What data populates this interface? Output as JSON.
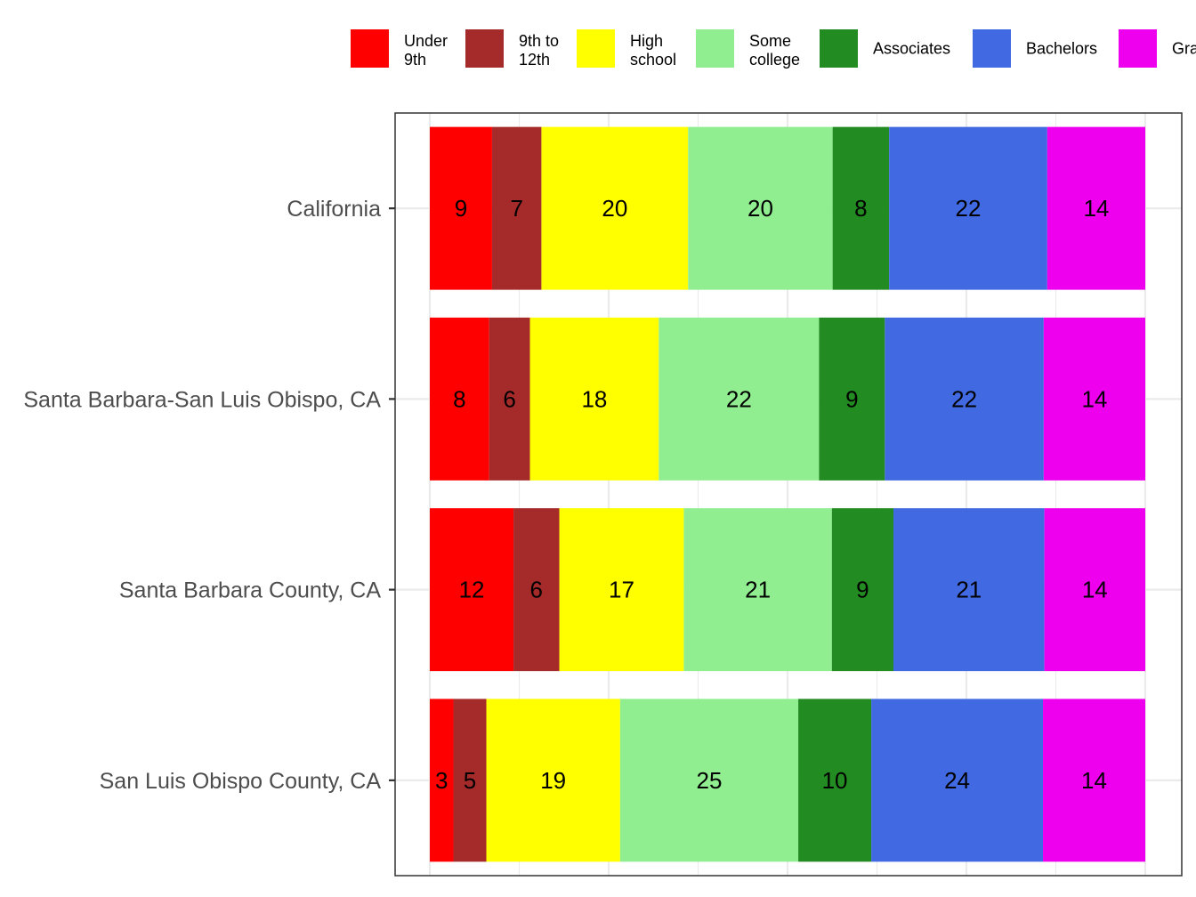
{
  "chart_data": {
    "type": "bar",
    "orientation": "horizontal",
    "stacked": true,
    "title": "",
    "xlabel": "",
    "ylabel": "",
    "categories": [
      "California",
      "Santa Barbara-San Luis Obispo, CA",
      "Santa Barbara County, CA",
      "San Luis Obispo County, CA"
    ],
    "series": [
      {
        "name": "Under\n9th",
        "color": "#ff0000",
        "values": [
          8.7,
          8.3,
          11.7,
          3.3
        ]
      },
      {
        "name": "9th to\n12th",
        "color": "#a52a2a",
        "values": [
          6.9,
          5.7,
          6.4,
          4.6
        ]
      },
      {
        "name": "High\nschool",
        "color": "#ffff00",
        "values": [
          20.5,
          18,
          17.4,
          18.7
        ]
      },
      {
        "name": "Some\ncollege",
        "color": "#90ee90",
        "values": [
          20.2,
          22.4,
          20.7,
          24.9
        ]
      },
      {
        "name": "Associates",
        "color": "#228b22",
        "values": [
          7.9,
          9.2,
          8.6,
          10.2
        ]
      },
      {
        "name": "Bachelors",
        "color": "#4169e1",
        "values": [
          22.1,
          22.2,
          21.1,
          24
        ]
      },
      {
        "name": "Graduate",
        "color": "#ee00ee",
        "values": [
          13.7,
          14.2,
          14.1,
          14.3
        ]
      }
    ],
    "data_labels": [
      [
        "9",
        "7",
        "20",
        "20",
        "8",
        "22",
        "14"
      ],
      [
        "8",
        "6",
        "18",
        "22",
        "9",
        "22",
        "14"
      ],
      [
        "12",
        "6",
        "17",
        "21",
        "9",
        "21",
        "14"
      ],
      [
        "3",
        "5",
        "19",
        "25",
        "10",
        "24",
        "14"
      ]
    ],
    "xlim": [
      0,
      100
    ],
    "grid": true,
    "legend_position": "top"
  }
}
